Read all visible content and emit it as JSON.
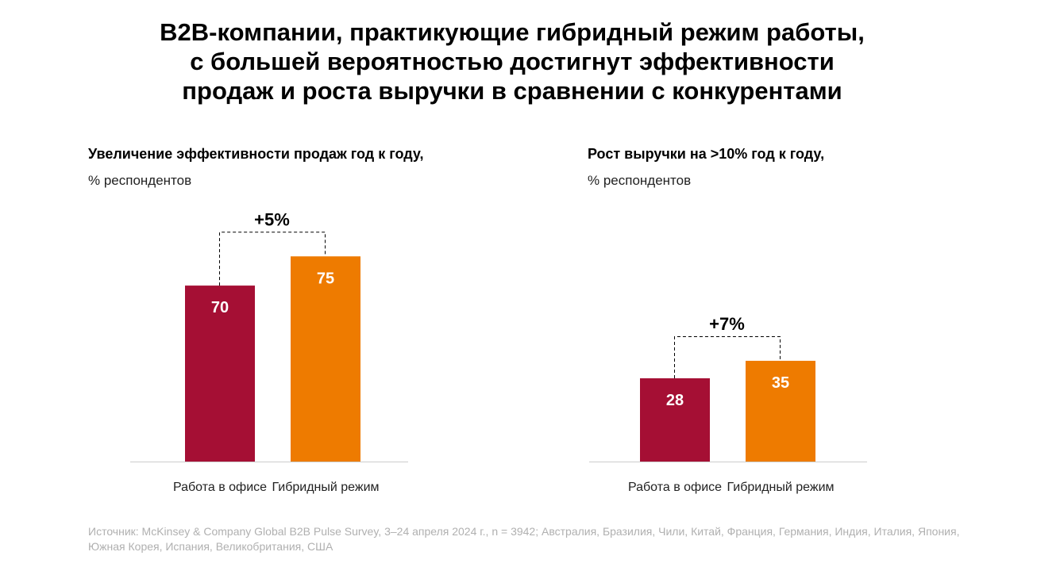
{
  "title_lines": [
    "B2B-компании, практикующие гибридный режим работы,",
    "с большей вероятностью достигнут эффективности",
    "продаж и роста выручки в сравнении с конкурентами"
  ],
  "colors": {
    "office": "#A50F34",
    "hybrid": "#EE7B00"
  },
  "chart_data": [
    {
      "type": "bar",
      "title": "Увеличение эффективности продаж год к году,",
      "ylabel": "% респондентов",
      "categories": [
        "Работа в офисе",
        "Гибридный режим"
      ],
      "values": [
        70,
        75
      ],
      "annotation": "+5%"
    },
    {
      "type": "bar",
      "title": "Рост выручки на >10% год к году,",
      "ylabel": "% респондентов",
      "categories": [
        "Работа в офисе",
        "Гибридный режим"
      ],
      "values": [
        28,
        35
      ],
      "annotation": "+7%"
    }
  ],
  "source": "Источник: McKinsey & Company Global B2B Pulse Survey, 3–24 апреля 2024 г., n = 3942; Австралия, Бразилия, Чили, Китай, Франция, Германия, Индия, Италия, Япония, Южная Корея, Испания, Великобритания, США"
}
